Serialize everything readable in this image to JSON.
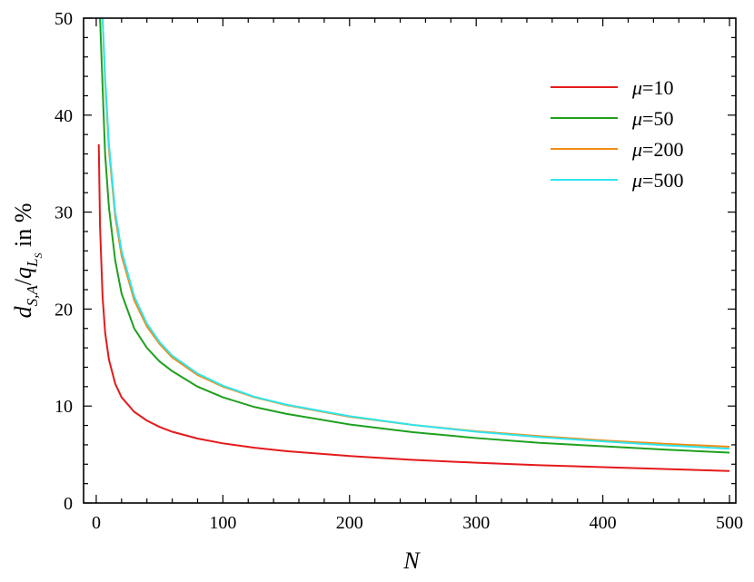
{
  "chart_data": {
    "type": "line",
    "title": "",
    "xlabel": "N",
    "ylabel": "d_{S,A}/q_{L_S} in %",
    "xlim": [
      -10,
      505
    ],
    "ylim": [
      0,
      50
    ],
    "xticks": [
      0,
      100,
      200,
      300,
      400,
      500
    ],
    "yticks": [
      0,
      10,
      20,
      30,
      40,
      50
    ],
    "grid": false,
    "legend_position": "top-right",
    "series": [
      {
        "name": "μ=10",
        "color": "#e41a1c",
        "x": [
          2,
          3,
          5,
          7,
          10,
          15,
          20,
          30,
          40,
          50,
          60,
          80,
          100,
          125,
          150,
          200,
          250,
          300,
          350,
          400,
          450,
          500
        ],
        "values": [
          37.0,
          28.5,
          21.3,
          17.6,
          14.8,
          12.3,
          10.9,
          9.4,
          8.5,
          7.85,
          7.35,
          6.65,
          6.15,
          5.7,
          5.35,
          4.85,
          4.45,
          4.15,
          3.9,
          3.7,
          3.5,
          3.3
        ]
      },
      {
        "name": "μ=50",
        "color": "#1fa01f",
        "x": [
          2,
          3,
          5,
          7,
          10,
          15,
          20,
          30,
          40,
          50,
          60,
          80,
          100,
          125,
          150,
          200,
          250,
          300,
          350,
          400,
          450,
          500
        ],
        "values": [
          50,
          50,
          43.0,
          36.0,
          30.5,
          25.0,
          21.6,
          18.0,
          16.0,
          14.6,
          13.6,
          12.0,
          10.9,
          9.9,
          9.2,
          8.1,
          7.3,
          6.7,
          6.2,
          5.85,
          5.5,
          5.2
        ]
      },
      {
        "name": "μ=200",
        "color": "#f08c14",
        "x": [
          2,
          3,
          5,
          7,
          10,
          15,
          20,
          30,
          40,
          50,
          60,
          80,
          100,
          125,
          150,
          200,
          250,
          300,
          350,
          400,
          450,
          500
        ],
        "values": [
          50,
          50,
          50,
          43.5,
          36.5,
          29.5,
          25.5,
          20.9,
          18.2,
          16.4,
          15.0,
          13.2,
          12.0,
          10.9,
          10.1,
          8.9,
          8.05,
          7.4,
          6.9,
          6.45,
          6.1,
          5.8
        ]
      },
      {
        "name": "μ=500",
        "color": "#2ee6ee",
        "x": [
          2,
          3,
          5,
          7,
          10,
          15,
          20,
          30,
          40,
          50,
          60,
          80,
          100,
          125,
          150,
          200,
          250,
          300,
          350,
          400,
          450,
          500
        ],
        "values": [
          50,
          50,
          50,
          44.0,
          37.0,
          30.0,
          26.0,
          21.3,
          18.5,
          16.6,
          15.2,
          13.35,
          12.1,
          10.95,
          10.15,
          8.95,
          8.05,
          7.35,
          6.8,
          6.35,
          5.95,
          5.6
        ]
      }
    ]
  }
}
